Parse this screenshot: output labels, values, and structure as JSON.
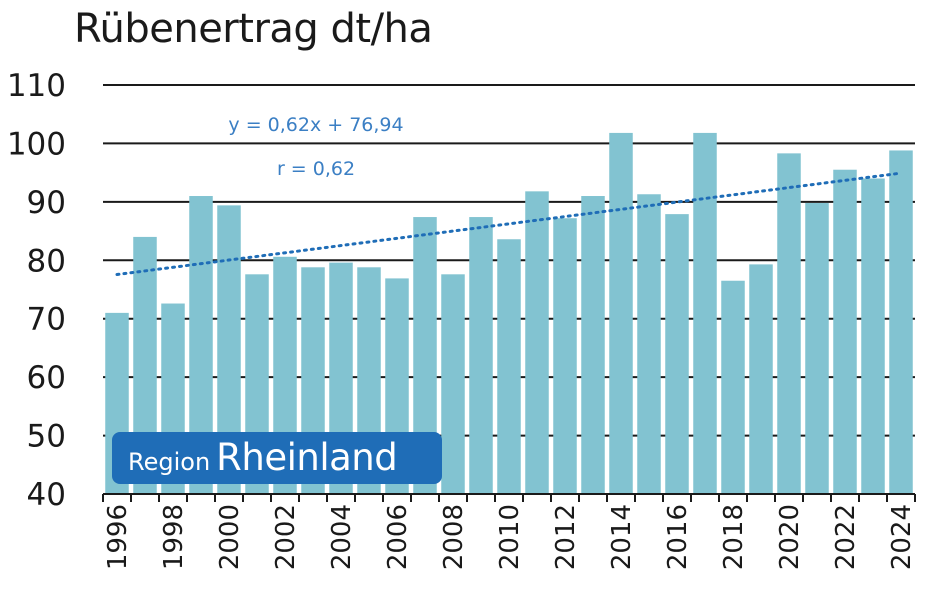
{
  "colors": {
    "bar": "#82c3d1",
    "grid": "#1a1a1a",
    "trend": "#1f6db7",
    "annotation": "#3b7fc4",
    "badge_bg": "#1f6db7",
    "badge_text": "#ffffff"
  },
  "badge": {
    "small": "Region",
    "big": "Rheinland"
  },
  "chart_data": {
    "type": "bar",
    "title": "Rübenertrag dt/ha",
    "xlabel": "",
    "ylabel": "",
    "ylim": [
      40,
      110
    ],
    "yticks": [
      40,
      50,
      60,
      70,
      80,
      90,
      100,
      110
    ],
    "grid": true,
    "categories": [
      "1996",
      "1997",
      "1998",
      "1999",
      "2000",
      "2001",
      "2002",
      "2003",
      "2004",
      "2005",
      "2006",
      "2007",
      "2008",
      "2009",
      "2010",
      "2011",
      "2012",
      "2013",
      "2014",
      "2015",
      "2016",
      "2017",
      "2018",
      "2019",
      "2020",
      "2021",
      "2022",
      "2023",
      "2024"
    ],
    "xtick_labels": [
      "1996",
      "",
      "1998",
      "",
      "2000",
      "",
      "2002",
      "",
      "2004",
      "",
      "2006",
      "",
      "2008",
      "",
      "2010",
      "",
      "2012",
      "",
      "2014",
      "",
      "2016",
      "",
      "2018",
      "",
      "2020",
      "",
      "2022",
      "",
      "2024"
    ],
    "values": [
      71,
      84,
      72.6,
      91,
      89.4,
      77.6,
      80.6,
      78.8,
      79.6,
      78.8,
      76.9,
      87.4,
      77.6,
      87.4,
      83.6,
      91.8,
      87.2,
      91,
      101.8,
      91.3,
      87.9,
      101.8,
      76.5,
      79.3,
      98.3,
      89.8,
      95.5,
      94,
      98.8
    ],
    "trendline": {
      "slope": 0.62,
      "intercept": 76.94,
      "style": "dotted"
    },
    "annotations": [
      "y = 0,62x + 76,94",
      "r = 0,62"
    ]
  }
}
